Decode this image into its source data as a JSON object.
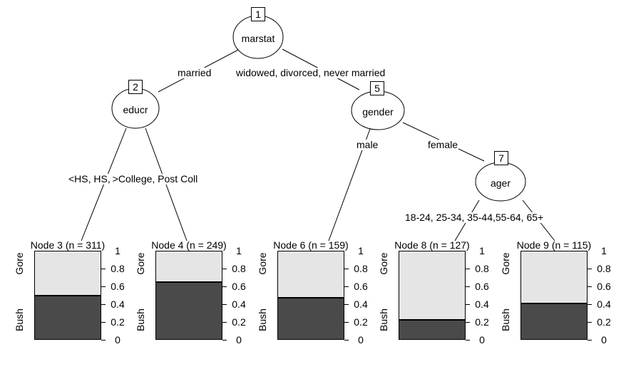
{
  "plot": {
    "background": "#ffffff",
    "stroke_color": "#000000"
  },
  "colors": {
    "gore_fill": "#e5e5e5",
    "bush_fill": "#4a4a4a"
  },
  "tree": {
    "node1": {
      "id": "1",
      "label": "marstat"
    },
    "node2": {
      "id": "2",
      "label": "educr"
    },
    "node5": {
      "id": "5",
      "label": "gender"
    },
    "node7": {
      "id": "7",
      "label": "ager"
    },
    "edges": {
      "node1_left": "married",
      "node1_right": "widowed, divorced, never married",
      "node2_left": "<HS, HS,",
      "node2_right": ">College, Post Coll",
      "node5_left": "male",
      "node5_right": "female",
      "node7_left": "18-24, 25-34, 35-44,",
      "node7_right": "55-64, 65+"
    }
  },
  "chart_data": {
    "type": "bar",
    "stacked": true,
    "orientation": "vertical",
    "categories": [
      "Bush",
      "Gore"
    ],
    "ylim": [
      0,
      1
    ],
    "ytick_values": [
      1,
      0.8,
      0.6,
      0.4,
      0.2,
      0
    ],
    "ytick_labels": [
      "1",
      "0.8",
      "0.6",
      "0.4",
      "0.2",
      "0"
    ],
    "panels": [
      {
        "title": "Node 3 (n = 311)",
        "n": 311,
        "series": {
          "Bush": 0.5,
          "Gore": 0.5
        }
      },
      {
        "title": "Node 4 (n = 249)",
        "n": 249,
        "series": {
          "Bush": 0.65,
          "Gore": 0.35
        }
      },
      {
        "title": "Node 6 (n = 159)",
        "n": 159,
        "series": {
          "Bush": 0.47,
          "Gore": 0.53
        }
      },
      {
        "title": "Node 8 (n = 127)",
        "n": 127,
        "series": {
          "Bush": 0.22,
          "Gore": 0.78
        }
      },
      {
        "title": "Node 9 (n = 115)",
        "n": 115,
        "series": {
          "Bush": 0.41,
          "Gore": 0.59
        }
      }
    ]
  }
}
